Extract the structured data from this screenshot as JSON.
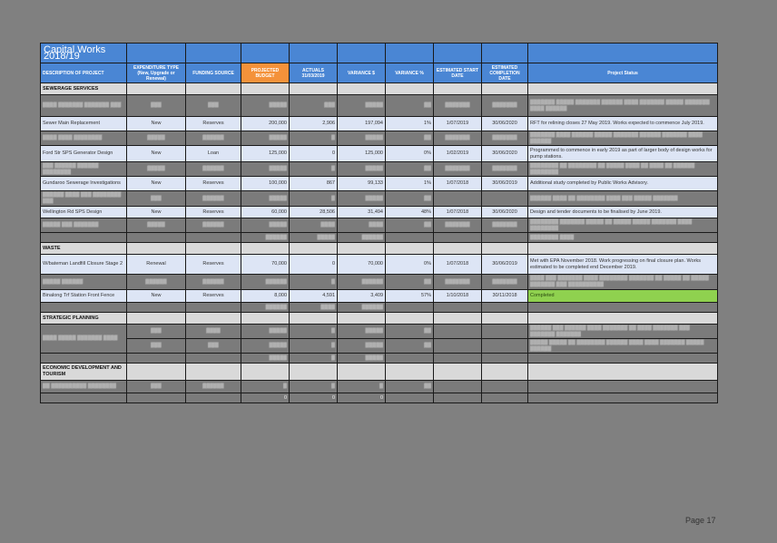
{
  "title": "Capital Works 2018/19",
  "headers": {
    "description": "DESCRIPTION OF PROJECT",
    "expenditure_type": "EXPENDITURE TYPE (New, Upgrade or Renewal)",
    "funding_source": "FUNDING SOURCE",
    "projected_budget": "PROJECTED BUDGET",
    "actuals": "ACTUALS 31/03/2019",
    "variance_dollar": "VARIANCE $",
    "variance_pct": "VARIANCE %",
    "start_date": "ESTIMATED START DATE",
    "completion_date": "ESTIMATED COMPLETION DATE",
    "status": "Project Status"
  },
  "sections": {
    "sewerage": {
      "label": "SEWERAGE SERVICES",
      "rows": [
        {
          "desc": "▒▒▒▒ ▒▒▒▒▒▒▒ ▒▒▒▒▒▒▒ ▒▒▒",
          "type": "▒▒▒",
          "fund": "▒▒▒",
          "budget": "▒▒▒▒▒",
          "actual": "▒▒▒",
          "var": "▒▒▒▒▒",
          "pct": "▒▒",
          "start": "▒▒▒▒▒▒▒",
          "end": "▒▒▒▒▒▒▒",
          "status": "▒▒▒▒▒▒▒ ▒▒▒▒▒ ▒▒▒▒▒▒▒ ▒▒▒▒▒▒ ▒▒▒▒ ▒▒▒▒▒▒▒ ▒▒▒▒▒ ▒▒▒▒▒▒▒ ▒▒▒▒ ▒▒▒▒▒▒",
          "style": "gr"
        },
        {
          "desc": "Sewer Main Replacement",
          "type": "New",
          "fund": "Reserves",
          "budget": "200,000",
          "actual": "2,906",
          "var": "197,094",
          "pct": "1%",
          "start": "1/07/2019",
          "end": "30/06/2020",
          "status": "RFT for relining closes 27 May 2019. Works expected to commence July 2019.",
          "style": "lt"
        },
        {
          "desc": "▒▒▒▒ ▒▒▒▒ ▒▒▒▒▒▒▒▒",
          "type": "▒▒▒▒▒",
          "fund": "▒▒▒▒▒▒",
          "budget": "▒▒▒▒▒",
          "actual": "▒",
          "var": "▒▒▒▒▒",
          "pct": "▒▒",
          "start": "▒▒▒▒▒▒▒",
          "end": "▒▒▒▒▒▒▒",
          "status": "▒▒▒▒▒▒▒ ▒▒▒▒ ▒▒▒▒▒▒ ▒▒▒▒▒ ▒▒▒▒▒▒▒ ▒▒▒▒▒▒ ▒▒▒▒▒▒▒ ▒▒▒▒ ▒▒▒▒▒▒",
          "style": "gr"
        },
        {
          "desc": "Ford Str SPS Generator Design",
          "type": "New",
          "fund": "Loan",
          "budget": "125,000",
          "actual": "0",
          "var": "125,000",
          "pct": "0%",
          "start": "1/02/2019",
          "end": "30/06/2020",
          "status": "Programmed to commence in early 2019 as part of larger body of design works for pump stations.",
          "style": "lt"
        },
        {
          "desc": "▒▒▒ ▒▒▒▒▒▒ ▒▒▒▒▒▒ ▒▒▒▒▒▒▒▒",
          "type": "▒▒▒▒▒",
          "fund": "▒▒▒▒▒▒",
          "budget": "▒▒▒▒▒",
          "actual": "▒",
          "var": "▒▒▒▒▒",
          "pct": "▒▒",
          "start": "▒▒▒▒▒▒▒",
          "end": "▒▒▒▒▒▒▒",
          "status": "▒▒▒▒▒▒▒▒ ▒▒ ▒▒▒▒▒▒▒▒ ▒▒ ▒▒▒▒▒ ▒▒▒▒ ▒▒ ▒▒▒▒ ▒▒ ▒▒▒▒▒▒ ▒▒▒▒▒▒▒▒",
          "style": "gr"
        },
        {
          "desc": "Gundaroo Sewerage Investigations",
          "type": "New",
          "fund": "Reserves",
          "budget": "100,000",
          "actual": "867",
          "var": "99,133",
          "pct": "1%",
          "start": "1/07/2018",
          "end": "30/06/2019",
          "status": "Additional study completed by Public Works Advisory.",
          "style": "lt"
        },
        {
          "desc": "▒▒▒▒▒▒ ▒▒▒▒ ▒▒▒ ▒▒▒▒▒▒▒▒ ▒▒▒",
          "type": "▒▒▒",
          "fund": "▒▒▒▒▒▒",
          "budget": "▒▒▒▒▒",
          "actual": "▒",
          "var": "▒▒▒▒▒",
          "pct": "▒▒",
          "start": "",
          "end": "",
          "status": "▒▒▒▒▒▒ ▒▒▒▒ ▒▒ ▒▒▒▒▒▒▒▒ ▒▒▒▒ ▒▒▒ ▒▒▒▒▒ ▒▒▒▒▒▒▒",
          "style": "gr"
        },
        {
          "desc": "Wellington Rd SPS Design",
          "type": "New",
          "fund": "Reserves",
          "budget": "60,000",
          "actual": "28,506",
          "var": "31,494",
          "pct": "48%",
          "start": "1/07/2018",
          "end": "30/06/2020",
          "status": "Design and tender documents to be finalised by June 2019.",
          "style": "lt"
        },
        {
          "desc": "▒▒▒▒▒ ▒▒▒ ▒▒▒▒▒▒▒",
          "type": "▒▒▒▒▒",
          "fund": "▒▒▒▒▒▒",
          "budget": "▒▒▒▒▒",
          "actual": "▒▒▒▒",
          "var": "▒▒▒▒",
          "pct": "▒▒",
          "start": "▒▒▒▒▒▒▒",
          "end": "▒▒▒▒▒▒▒",
          "status": "▒▒▒▒▒▒▒▒ ▒▒▒▒▒▒▒ ▒▒▒▒▒ ▒▒ ▒▒▒▒▒ ▒▒▒▒▒ ▒▒▒▒▒▒▒ ▒▒▒▒ ▒▒▒▒▒▒▒▒",
          "style": "gr"
        }
      ],
      "subtotal": {
        "budget": "▒▒▒▒▒▒",
        "actual": "▒▒▒▒▒",
        "var": "▒▒▒▒▒▒",
        "status": "▒▒▒▒▒▒▒▒ ▒▒▒▒"
      }
    },
    "waste": {
      "label": "WASTE",
      "rows": [
        {
          "desc": "W/bateman Landfill Closure Stage 2",
          "type": "Renewal",
          "fund": "Reserves",
          "budget": "70,000",
          "actual": "0",
          "var": "70,000",
          "pct": "0%",
          "start": "1/07/2018",
          "end": "30/06/2019",
          "status": "Met with EPA November 2018.  Work progressing on final closure plan.  Works estimated to be completed end December 2019.",
          "style": "lt"
        },
        {
          "desc": "▒▒▒▒▒ ▒▒▒▒▒▒",
          "type": "▒▒▒▒▒▒",
          "fund": "▒▒▒▒▒▒",
          "budget": "▒▒▒▒▒▒",
          "actual": "▒",
          "var": "▒▒▒▒▒▒",
          "pct": "▒▒",
          "start": "▒▒▒▒▒▒▒",
          "end": "▒▒▒▒▒▒▒",
          "status": "▒▒▒▒ ▒▒▒ ▒▒▒▒▒▒▒ ▒▒▒▒ ▒▒▒▒▒▒▒▒ ▒▒▒▒▒▒▒ ▒▒ ▒▒▒▒▒ ▒▒ ▒▒▒▒▒ ▒▒▒▒▒▒▒ ▒▒▒ ▒▒▒▒▒▒▒▒▒▒",
          "style": "gr"
        },
        {
          "desc": "Binalong Trf Station Front Fence",
          "type": "New",
          "fund": "Reserves",
          "budget": "8,000",
          "actual": "4,591",
          "var": "3,409",
          "pct": "57%",
          "start": "1/10/2018",
          "end": "30/11/2018",
          "status": "Completed",
          "style": "lt",
          "status_green": true
        }
      ],
      "subtotal": {
        "budget": "▒▒▒▒▒▒",
        "actual": "▒▒▒▒",
        "var": "▒▒▒▒▒▒",
        "status": ""
      }
    },
    "strategic": {
      "label": "STRATEGIC PLANNING",
      "desc": "▒▒▒▒ ▒▒▒▒▒ ▒▒▒▒▒▒▒ ▒▒▒▒",
      "rows": [
        {
          "type": "▒▒▒",
          "fund": "▒▒▒▒",
          "budget": "▒▒▒▒▒",
          "actual": "▒",
          "var": "▒▒▒▒▒",
          "pct": "▒▒",
          "status": "▒▒▒▒▒▒ ▒▒▒ ▒▒▒▒▒▒ ▒▒▒▒ ▒▒▒▒▒▒▒ ▒▒ ▒▒▒▒ ▒▒▒▒▒▒▒ ▒▒▒ ▒▒▒▒▒▒▒ ▒▒▒▒▒▒▒"
        },
        {
          "type": "▒▒▒",
          "fund": "▒▒▒",
          "budget": "▒▒▒▒▒",
          "actual": "▒",
          "var": "▒▒▒▒▒",
          "pct": "▒▒",
          "status": "▒▒▒▒▒ ▒▒▒▒▒ ▒▒ ▒▒▒▒▒▒▒▒ ▒▒▒▒▒▒ ▒▒▒▒ ▒▒▒▒ ▒▒▒▒▒▒▒ ▒▒▒▒▒ ▒▒▒▒▒▒"
        }
      ],
      "subtotal": {
        "budget": "▒▒▒▒▒",
        "actual": "▒",
        "var": "▒▒▒▒▒"
      }
    },
    "economic": {
      "label": "ECONOMIC DEVELOPMENT AND TOURISM",
      "rows": [
        {
          "desc": "▒▒ ▒▒▒▒▒▒▒▒▒▒ ▒▒▒▒▒▒▒▒",
          "type": "▒▒▒",
          "fund": "▒▒▒▒▒▒",
          "budget": "▒",
          "actual": "▒",
          "var": "▒",
          "pct": "▒▒"
        }
      ],
      "subtotal": {
        "budget": "0",
        "actual": "0",
        "var": "0"
      }
    }
  },
  "footer": {
    "page": "Page 17"
  }
}
